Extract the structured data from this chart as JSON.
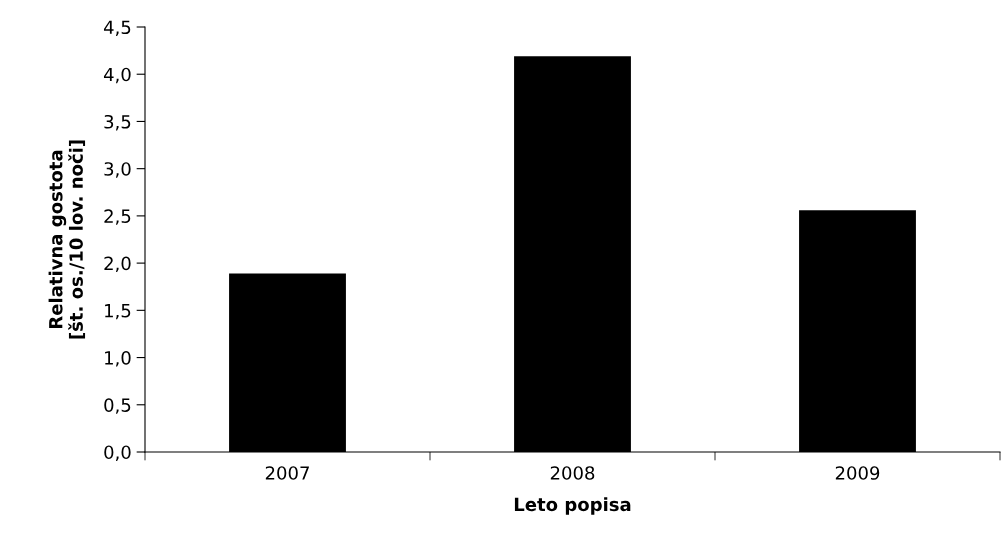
{
  "chart_data": {
    "type": "bar",
    "xlabel": "Leto popisa",
    "ylabel": "Relativna gostota\n[št. os./10 lov. noči]",
    "categories": [
      "2007",
      "2008",
      "2009"
    ],
    "values": [
      1.89,
      4.19,
      2.56
    ],
    "color": "#000000",
    "ylim": [
      0,
      4.5
    ],
    "yticks": [
      {
        "value": 0,
        "label": "0,0"
      },
      {
        "value": 0.5,
        "label": "0,5"
      },
      {
        "value": 1,
        "label": "1,0"
      },
      {
        "value": 1.5,
        "label": "1,5"
      },
      {
        "value": 2,
        "label": "2,0"
      },
      {
        "value": 2.5,
        "label": "2,5"
      },
      {
        "value": 3,
        "label": "3,0"
      },
      {
        "value": 3.5,
        "label": "3,5"
      },
      {
        "value": 4,
        "label": "4,0"
      },
      {
        "value": 4.5,
        "label": "4,5"
      }
    ],
    "grid": false,
    "legend": false
  }
}
